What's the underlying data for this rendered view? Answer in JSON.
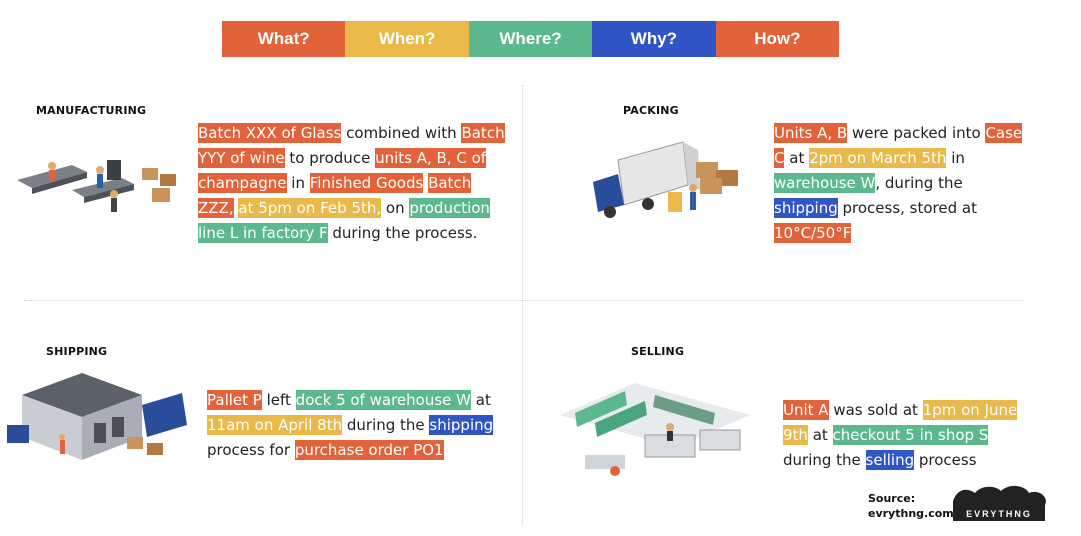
{
  "legend": [
    {
      "label": "What?",
      "color": "#e2623a"
    },
    {
      "label": "When?",
      "color": "#e9b94a"
    },
    {
      "label": "Where?",
      "color": "#5cb88d"
    },
    {
      "label": "Why?",
      "color": "#2f56c4"
    },
    {
      "label": "How?",
      "color": "#e2623a"
    }
  ],
  "sections": {
    "manufacturing": {
      "title": "MANUFACTURING",
      "segments": [
        {
          "text": "Batch XXX of Glass",
          "type": "what"
        },
        {
          "text": " combined with ",
          "type": "plain"
        },
        {
          "text": "Batch YYY of wine",
          "type": "what"
        },
        {
          "text": " to produce ",
          "type": "plain"
        },
        {
          "text": "units A, B, C of champagne",
          "type": "what"
        },
        {
          "text": " in ",
          "type": "plain"
        },
        {
          "text": "Finished Goods",
          "type": "what"
        },
        {
          "text": " ",
          "type": "plain"
        },
        {
          "text": "Batch ZZZ,",
          "type": "what"
        },
        {
          "text": " ",
          "type": "plain"
        },
        {
          "text": "at 5pm on Feb 5th,",
          "type": "when"
        },
        {
          "text": " on ",
          "type": "plain"
        },
        {
          "text": "production line L in factory F",
          "type": "where"
        },
        {
          "text": " during the process.",
          "type": "plain"
        }
      ]
    },
    "packing": {
      "title": "PACKING",
      "segments": [
        {
          "text": "Units A, B",
          "type": "what"
        },
        {
          "text": " were packed into ",
          "type": "plain"
        },
        {
          "text": "Case C",
          "type": "what"
        },
        {
          "text": " at ",
          "type": "plain"
        },
        {
          "text": "2pm on March 5th",
          "type": "when"
        },
        {
          "text": " in ",
          "type": "plain"
        },
        {
          "text": "warehouse W",
          "type": "where"
        },
        {
          "text": ", during the ",
          "type": "plain"
        },
        {
          "text": "shipping",
          "type": "why"
        },
        {
          "text": " process, stored at ",
          "type": "plain"
        },
        {
          "text": "10°C/50°F",
          "type": "what"
        }
      ]
    },
    "shipping": {
      "title": "SHIPPING",
      "segments": [
        {
          "text": "Pallet P",
          "type": "what"
        },
        {
          "text": " left ",
          "type": "plain"
        },
        {
          "text": "dock 5 of warehouse W",
          "type": "where"
        },
        {
          "text": " at ",
          "type": "plain"
        },
        {
          "text": "11am on April 8th",
          "type": "when"
        },
        {
          "text": " during the ",
          "type": "plain"
        },
        {
          "text": "shipping",
          "type": "why"
        },
        {
          "text": " process for ",
          "type": "plain"
        },
        {
          "text": "purchase order PO1",
          "type": "what"
        }
      ]
    },
    "selling": {
      "title": "SELLING",
      "segments": [
        {
          "text": "Unit A",
          "type": "what"
        },
        {
          "text": " was sold at ",
          "type": "plain"
        },
        {
          "text": "1pm on June 9th",
          "type": "when"
        },
        {
          "text": " at ",
          "type": "plain"
        },
        {
          "text": "checkout 5 in shop S",
          "type": "where"
        },
        {
          "text": " during the ",
          "type": "plain"
        },
        {
          "text": "selling",
          "type": "why"
        },
        {
          "text": " process",
          "type": "plain"
        }
      ]
    }
  },
  "source": {
    "label": "Source:",
    "value": "evrythng.com"
  },
  "logo": {
    "text": "EVRYTHNG"
  },
  "icons": [
    "factory-conveyor-icon",
    "truck-loading-icon",
    "warehouse-icon",
    "store-checkout-icon"
  ]
}
